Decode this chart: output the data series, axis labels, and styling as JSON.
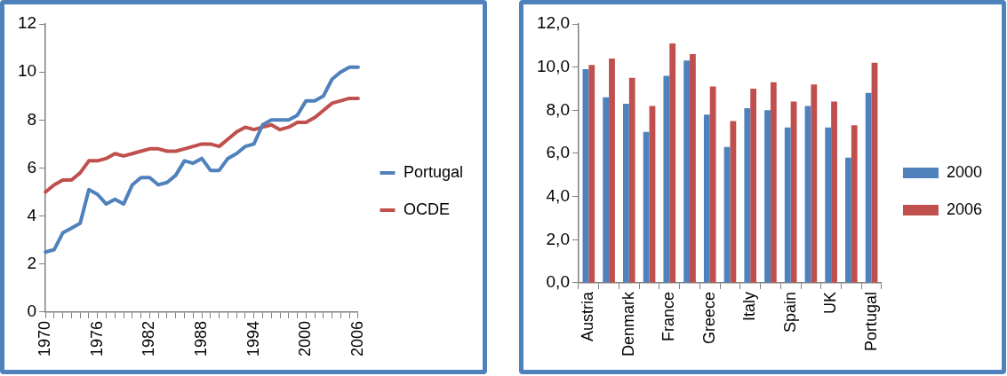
{
  "chart_data": [
    {
      "type": "line",
      "categories": [
        "1970",
        null,
        null,
        null,
        null,
        null,
        "1976",
        null,
        null,
        null,
        null,
        null,
        "1982",
        null,
        null,
        null,
        null,
        null,
        "1988",
        null,
        null,
        null,
        null,
        null,
        "1994",
        null,
        null,
        null,
        null,
        null,
        "2000",
        null,
        null,
        null,
        null,
        null,
        "2006"
      ],
      "series": [
        {
          "name": "Portugal",
          "color": "#4f81bd",
          "values": [
            2.5,
            2.6,
            3.3,
            3.5,
            3.7,
            5.1,
            4.9,
            4.5,
            4.7,
            4.5,
            5.3,
            5.6,
            5.6,
            5.3,
            5.4,
            5.7,
            6.3,
            6.2,
            6.4,
            5.9,
            5.9,
            6.4,
            6.6,
            6.9,
            7.0,
            7.8,
            8.0,
            8.0,
            8.0,
            8.2,
            8.8,
            8.8,
            9.0,
            9.7,
            10.0,
            10.2,
            10.2
          ]
        },
        {
          "name": "OCDE",
          "color": "#c0504d",
          "values": [
            5.0,
            5.3,
            5.5,
            5.5,
            5.8,
            6.3,
            6.3,
            6.4,
            6.6,
            6.5,
            6.6,
            6.7,
            6.8,
            6.8,
            6.7,
            6.7,
            6.8,
            6.9,
            7.0,
            7.0,
            6.9,
            7.2,
            7.5,
            7.7,
            7.6,
            7.7,
            7.8,
            7.6,
            7.7,
            7.9,
            7.9,
            8.1,
            8.4,
            8.7,
            8.8,
            8.9,
            8.9
          ]
        }
      ],
      "ylim": [
        0,
        12
      ],
      "yticks": [
        0,
        2,
        4,
        6,
        8,
        10,
        12
      ],
      "grid": false,
      "legend": "right",
      "marker": "none",
      "line_style": "solid"
    },
    {
      "type": "bar",
      "categories": [
        "Austria",
        null,
        "Denmark",
        null,
        "France",
        null,
        "Greece",
        null,
        "Italy",
        null,
        "Spain",
        null,
        "UK",
        null,
        "Portugal"
      ],
      "series": [
        {
          "name": "2000",
          "color": "#4f81bd",
          "values": [
            9.9,
            8.6,
            8.3,
            7.0,
            9.6,
            10.3,
            7.8,
            6.3,
            8.1,
            8.0,
            7.2,
            8.2,
            7.2,
            5.8,
            8.8
          ]
        },
        {
          "name": "2006",
          "color": "#c0504d",
          "values": [
            10.1,
            10.4,
            9.5,
            8.2,
            11.1,
            10.6,
            9.1,
            7.5,
            9.0,
            9.3,
            8.4,
            9.2,
            8.4,
            7.3,
            10.2
          ]
        }
      ],
      "ylim": [
        0,
        12
      ],
      "yticks": [
        {
          "value": 0,
          "label": "0,0"
        },
        {
          "value": 2,
          "label": "2,0"
        },
        {
          "value": 4,
          "label": "4,0"
        },
        {
          "value": 6,
          "label": "6,0"
        },
        {
          "value": 8,
          "label": "8,0"
        },
        {
          "value": 10,
          "label": "10,0"
        },
        {
          "value": 12,
          "label": "12,0"
        }
      ],
      "grid": false,
      "legend": "right"
    }
  ]
}
